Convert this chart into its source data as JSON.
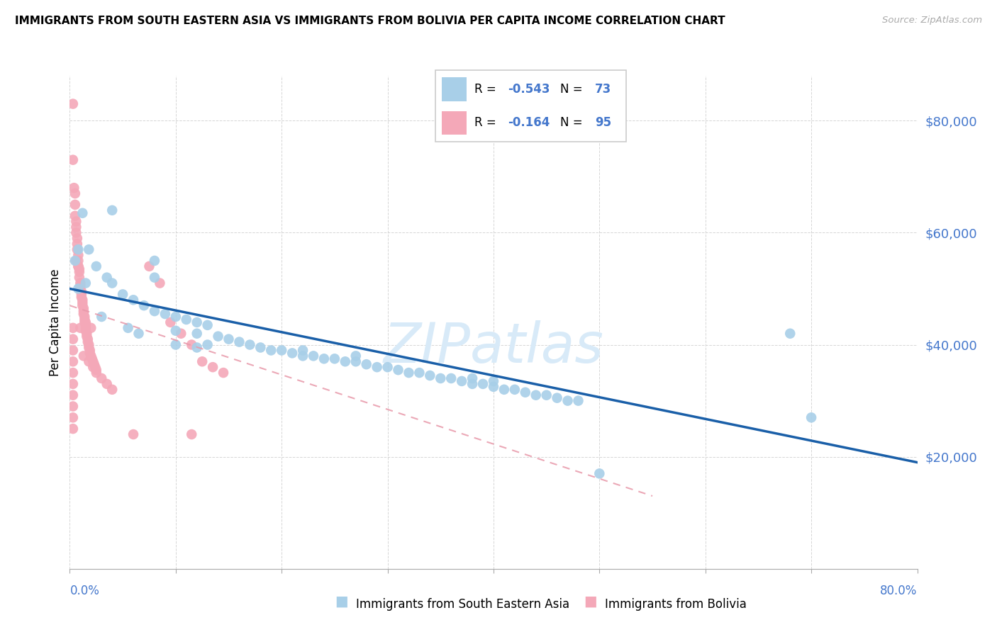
{
  "title": "IMMIGRANTS FROM SOUTH EASTERN ASIA VS IMMIGRANTS FROM BOLIVIA PER CAPITA INCOME CORRELATION CHART",
  "source": "Source: ZipAtlas.com",
  "ylabel": "Per Capita Income",
  "ytick_labels": [
    "$20,000",
    "$40,000",
    "$60,000",
    "$80,000"
  ],
  "ytick_values": [
    20000,
    40000,
    60000,
    80000
  ],
  "ylim": [
    0,
    88000
  ],
  "xlim": [
    0.0,
    0.8
  ],
  "color_blue": "#a8cfe8",
  "color_pink": "#f4a8b8",
  "color_blue_line": "#1a5fa8",
  "color_pink_line": "#e899aa",
  "blue_line_x": [
    0.0,
    0.8
  ],
  "blue_line_y": [
    50000,
    19000
  ],
  "pink_line_x": [
    0.0,
    0.55
  ],
  "pink_line_y": [
    47000,
    13000
  ],
  "blue_scatter": [
    [
      0.005,
      55000
    ],
    [
      0.008,
      57000
    ],
    [
      0.012,
      63500
    ],
    [
      0.018,
      57000
    ],
    [
      0.04,
      64000
    ],
    [
      0.08,
      55000
    ],
    [
      0.08,
      52000
    ],
    [
      0.008,
      50000
    ],
    [
      0.015,
      51000
    ],
    [
      0.025,
      54000
    ],
    [
      0.035,
      52000
    ],
    [
      0.04,
      51000
    ],
    [
      0.05,
      49000
    ],
    [
      0.06,
      48000
    ],
    [
      0.07,
      47000
    ],
    [
      0.08,
      46000
    ],
    [
      0.09,
      45500
    ],
    [
      0.1,
      45000
    ],
    [
      0.11,
      44500
    ],
    [
      0.12,
      44000
    ],
    [
      0.13,
      43500
    ],
    [
      0.03,
      45000
    ],
    [
      0.055,
      43000
    ],
    [
      0.065,
      42000
    ],
    [
      0.1,
      42500
    ],
    [
      0.12,
      42000
    ],
    [
      0.14,
      41500
    ],
    [
      0.1,
      40000
    ],
    [
      0.12,
      39500
    ],
    [
      0.13,
      40000
    ],
    [
      0.15,
      41000
    ],
    [
      0.16,
      40500
    ],
    [
      0.17,
      40000
    ],
    [
      0.18,
      39500
    ],
    [
      0.19,
      39000
    ],
    [
      0.2,
      39000
    ],
    [
      0.21,
      38500
    ],
    [
      0.22,
      38000
    ],
    [
      0.22,
      39000
    ],
    [
      0.23,
      38000
    ],
    [
      0.24,
      37500
    ],
    [
      0.25,
      37500
    ],
    [
      0.26,
      37000
    ],
    [
      0.27,
      37000
    ],
    [
      0.27,
      38000
    ],
    [
      0.28,
      36500
    ],
    [
      0.29,
      36000
    ],
    [
      0.3,
      36000
    ],
    [
      0.31,
      35500
    ],
    [
      0.32,
      35000
    ],
    [
      0.33,
      35000
    ],
    [
      0.34,
      34500
    ],
    [
      0.35,
      34000
    ],
    [
      0.36,
      34000
    ],
    [
      0.37,
      33500
    ],
    [
      0.38,
      33000
    ],
    [
      0.38,
      34000
    ],
    [
      0.39,
      33000
    ],
    [
      0.4,
      32500
    ],
    [
      0.4,
      33500
    ],
    [
      0.41,
      32000
    ],
    [
      0.42,
      32000
    ],
    [
      0.43,
      31500
    ],
    [
      0.44,
      31000
    ],
    [
      0.45,
      31000
    ],
    [
      0.46,
      30500
    ],
    [
      0.47,
      30000
    ],
    [
      0.48,
      30000
    ],
    [
      0.5,
      17000
    ],
    [
      0.68,
      42000
    ],
    [
      0.7,
      27000
    ]
  ],
  "pink_scatter": [
    [
      0.003,
      83000
    ],
    [
      0.003,
      73000
    ],
    [
      0.004,
      68000
    ],
    [
      0.005,
      67000
    ],
    [
      0.005,
      65000
    ],
    [
      0.005,
      63000
    ],
    [
      0.006,
      62000
    ],
    [
      0.006,
      61000
    ],
    [
      0.006,
      60000
    ],
    [
      0.007,
      59000
    ],
    [
      0.007,
      58000
    ],
    [
      0.007,
      57000
    ],
    [
      0.008,
      56000
    ],
    [
      0.008,
      55000
    ],
    [
      0.008,
      54000
    ],
    [
      0.009,
      53500
    ],
    [
      0.009,
      53000
    ],
    [
      0.009,
      52000
    ],
    [
      0.01,
      51000
    ],
    [
      0.01,
      50500
    ],
    [
      0.01,
      50000
    ],
    [
      0.011,
      49500
    ],
    [
      0.011,
      49000
    ],
    [
      0.011,
      48500
    ],
    [
      0.012,
      48000
    ],
    [
      0.012,
      47500
    ],
    [
      0.012,
      47000
    ],
    [
      0.013,
      46500
    ],
    [
      0.013,
      46000
    ],
    [
      0.013,
      45500
    ],
    [
      0.014,
      45000
    ],
    [
      0.014,
      44500
    ],
    [
      0.014,
      44000
    ],
    [
      0.015,
      43500
    ],
    [
      0.015,
      43000
    ],
    [
      0.015,
      42500
    ],
    [
      0.016,
      42000
    ],
    [
      0.016,
      41500
    ],
    [
      0.017,
      41000
    ],
    [
      0.017,
      40500
    ],
    [
      0.018,
      40000
    ],
    [
      0.018,
      39500
    ],
    [
      0.019,
      39000
    ],
    [
      0.019,
      38500
    ],
    [
      0.02,
      38000
    ],
    [
      0.021,
      37500
    ],
    [
      0.022,
      37000
    ],
    [
      0.023,
      36500
    ],
    [
      0.024,
      36000
    ],
    [
      0.025,
      35500
    ],
    [
      0.003,
      43000
    ],
    [
      0.003,
      41000
    ],
    [
      0.003,
      39000
    ],
    [
      0.003,
      37000
    ],
    [
      0.003,
      35000
    ],
    [
      0.003,
      33000
    ],
    [
      0.003,
      31000
    ],
    [
      0.003,
      29000
    ],
    [
      0.003,
      27000
    ],
    [
      0.003,
      25000
    ],
    [
      0.006,
      55000
    ],
    [
      0.008,
      54000
    ],
    [
      0.01,
      43000
    ],
    [
      0.015,
      44000
    ],
    [
      0.02,
      43000
    ],
    [
      0.013,
      38000
    ],
    [
      0.018,
      37000
    ],
    [
      0.022,
      36000
    ],
    [
      0.025,
      35000
    ],
    [
      0.03,
      34000
    ],
    [
      0.035,
      33000
    ],
    [
      0.04,
      32000
    ],
    [
      0.06,
      24000
    ],
    [
      0.075,
      54000
    ],
    [
      0.085,
      51000
    ],
    [
      0.095,
      44000
    ],
    [
      0.105,
      42000
    ],
    [
      0.115,
      40000
    ],
    [
      0.125,
      37000
    ],
    [
      0.135,
      36000
    ],
    [
      0.145,
      35000
    ],
    [
      0.115,
      24000
    ]
  ]
}
